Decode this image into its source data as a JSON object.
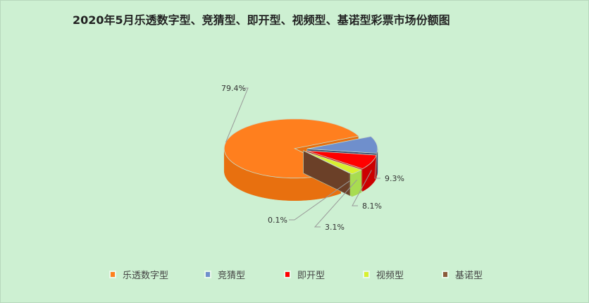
{
  "chart_data": {
    "type": "pie",
    "style": "3d-exploded",
    "title": "2020年5月乐透数字型、竞猜型、即开型、视频型、基诺型彩票市场份额图",
    "slices": [
      {
        "name": "竞猜型",
        "value": 9.3,
        "label": "9.3%",
        "color": "#6f8fcc",
        "side": "#34466e"
      },
      {
        "name": "即开型",
        "value": 8.1,
        "label": "8.1%",
        "color": "#ff0000",
        "side": "#cc0000"
      },
      {
        "name": "视频型",
        "value": 3.1,
        "label": "3.1%",
        "color": "#d8f030",
        "side": "#a8dc50"
      },
      {
        "name": "基诺型",
        "value": 0.1,
        "label": "0.1%",
        "color": "#8b5a3c",
        "side": "#6b4028"
      },
      {
        "name": "乐透数字型",
        "value": 79.4,
        "label": "79.4%",
        "color": "#ff7f1e",
        "side": "#e8700f"
      }
    ],
    "legend": {
      "placement": "bottom",
      "items": [
        "乐透数字型",
        "竞猜型",
        "即开型",
        "视频型",
        "基诺型"
      ],
      "colors": [
        "#ff7f1e",
        "#6f8fcc",
        "#ff0000",
        "#d8f030",
        "#8b5a3c"
      ]
    }
  }
}
